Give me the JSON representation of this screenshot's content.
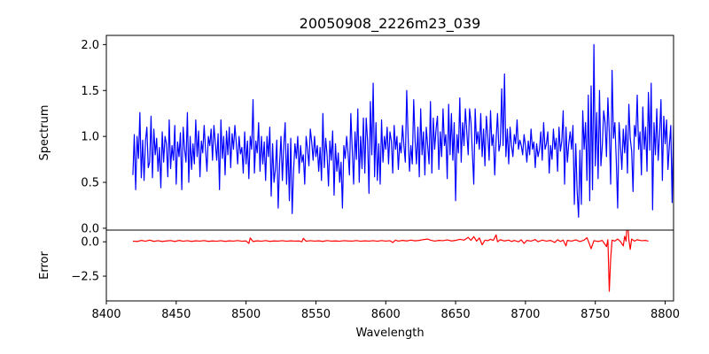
{
  "chart_data": [
    {
      "type": "line",
      "title": "20050908_2226m23_039",
      "xlabel": "",
      "ylabel": "Spectrum",
      "xlim": [
        8400,
        8806
      ],
      "ylim": [
        -0.02,
        2.1
      ],
      "yticks": [
        "0.0",
        "0.5",
        "1.0",
        "1.5",
        "2.0"
      ],
      "yticks_values": [
        0.0,
        0.5,
        1.0,
        1.5,
        2.0
      ],
      "series": [
        {
          "color": "#0000ff",
          "x_start": 8419,
          "x_step": 1,
          "values": [
            0.58,
            1.02,
            0.42,
            1.0,
            0.76,
            1.26,
            0.55,
            0.96,
            0.52,
            0.95,
            1.1,
            0.66,
            0.72,
            1.22,
            0.55,
            1.08,
            0.8,
            0.98,
            0.62,
            0.88,
            0.44,
            1.05,
            0.72,
            1.0,
            0.92,
            0.56,
            1.18,
            0.65,
            0.9,
            0.74,
            1.12,
            0.48,
            0.94,
            0.78,
            1.04,
            0.42,
            1.1,
            0.86,
            0.72,
            1.26,
            0.5,
            1.0,
            0.64,
            0.92,
            0.7,
            1.18,
            0.78,
            1.06,
            0.56,
            0.95,
            0.82,
            1.12,
            0.86,
            0.62,
            1.0,
            0.9,
            1.08,
            0.74,
            1.12,
            0.93,
            0.74,
            1.03,
            0.42,
            1.18,
            0.76,
            1.0,
            0.58,
            1.06,
            0.8,
            1.1,
            0.66,
            1.03,
            0.86,
            1.12,
            0.93,
            0.7,
            1.0,
            0.81,
            0.88,
            0.6,
            1.05,
            0.7,
            0.95,
            0.54,
            1.0,
            0.86,
            1.4,
            0.6,
            0.95,
            0.82,
            1.15,
            0.62,
            1.0,
            0.7,
            0.94,
            0.52,
            1.0,
            0.78,
            1.1,
            0.35,
            0.92,
            0.5,
            0.64,
            0.96,
            0.22,
            0.7,
            1.0,
            0.52,
            0.9,
            1.15,
            0.48,
            0.92,
            0.3,
            0.98,
            0.16,
            0.62,
            0.92,
            0.76,
            1.0,
            0.6,
            0.9,
            0.72,
            0.8,
            0.48,
            1.0,
            0.86,
            0.68,
            1.08,
            0.94,
            0.74,
            1.0,
            0.78,
            0.9,
            0.62,
            0.88,
            0.52,
            1.25,
            0.66,
            0.98,
            0.8,
            0.46,
            0.95,
            0.74,
            1.06,
            0.36,
            0.92,
            0.62,
            0.82,
            0.5,
            0.72,
            0.22,
            0.9,
            0.76,
            1.0,
            0.82,
            0.58,
            1.25,
            0.86,
            0.48,
            1.05,
            0.75,
            1.3,
            0.5,
            1.0,
            0.65,
            1.2,
            0.6,
            1.2,
            0.95,
            0.38,
            1.38,
            0.8,
            1.58,
            0.56,
            1.15,
            0.52,
            0.92,
            0.48,
            1.18,
            0.72,
            1.0,
            0.86,
            1.1,
            0.7,
            1.05,
            0.95,
            0.6,
            1.12,
            0.86,
            1.0,
            0.64,
            0.93,
            0.82,
            1.12,
            0.9,
            0.72,
            1.5,
            1.0,
            0.62,
            0.9,
            0.7,
            1.4,
            0.95,
            0.7,
            1.1,
            0.56,
            1.3,
            0.8,
            1.05,
            0.58,
            1.1,
            0.9,
            0.7,
            1.38,
            0.6,
            1.2,
            0.86,
            1.08,
            1.22,
            0.64,
            1.05,
            0.78,
            1.3,
            0.9,
            1.02,
            0.54,
            1.35,
            0.8,
            1.25,
            0.74,
            1.15,
            0.3,
            1.02,
            0.82,
            1.42,
            0.72,
            1.15,
            0.9,
            1.3,
            1.05,
            0.8,
            1.3,
            1.15,
            0.82,
            0.48,
            1.3,
            0.92,
            1.05,
            0.86,
            1.25,
            0.78,
            1.08,
            0.68,
            1.22,
            1.02,
            0.74,
            1.28,
            0.9,
            1.02,
            0.58,
            0.97,
            1.25,
            0.84,
            0.92,
            1.52,
            0.9,
            1.68,
            0.78,
            1.08,
            0.7,
            1.1,
            0.9,
            0.78,
            1.02,
            0.92,
            1.18,
            0.86,
            0.96,
            0.9,
            0.8,
            1.02,
            0.9,
            0.72,
            0.95,
            0.8,
            1.08,
            0.86,
            0.94,
            0.66,
            0.92,
            0.78,
            0.86,
            1.05,
            0.74,
            1.15,
            0.86,
            0.92,
            1.05,
            0.6,
            0.9,
            0.75,
            1.08,
            0.86,
            0.98,
            0.62,
            1.1,
            0.84,
            0.95,
            1.28,
            0.48,
            1.1,
            0.72,
            0.92,
            1.05,
            0.86,
            1.12,
            0.26,
            0.92,
            0.4,
            0.12,
            0.85,
            0.26,
            1.28,
            0.86,
            1.15,
            0.52,
            1.45,
            0.3,
            1.55,
            0.42,
            2.0,
            0.68,
            1.26,
            0.54,
            1.5,
            0.68,
            0.9,
            1.28,
            1.15,
            0.78,
            1.42,
            1.04,
            0.48,
            1.72,
            0.98,
            1.15,
            0.74,
            0.22,
            1.15,
            0.9,
            0.64,
            1.08,
            0.82,
            1.12,
            0.6,
            1.35,
            0.98,
            0.84,
            0.4,
            1.12,
            1.0,
            1.45,
            0.86,
            1.05,
            0.58,
            1.32,
            0.86,
            1.1,
            0.62,
            1.48,
            0.85,
            1.58,
            0.2,
            1.15,
            0.8,
            1.3,
            0.74,
            1.02,
            1.4,
            0.52,
            1.22,
            0.92,
            1.18,
            0.64,
            0.9,
            1.12,
            0.28,
            1.12,
            0.7,
            0.94,
            1.05,
            0.84,
            1.02,
            0.6,
            1.15,
            0.86,
            1.08,
            0.68,
            1.0,
            0.2,
            1.1,
            0.78,
            0.98,
            0.6,
            1.05,
            0.9,
            0.68,
            1.2,
            0.42,
            1.05,
            0.62,
            1.28,
            0.78,
            1.12,
            0.92,
            0.38,
            1.0,
            0.72,
            1.12,
            0.84,
            1.0,
            0.18,
            0.98,
            0.6,
            1.08,
            0.86,
            1.15,
            0.44,
            0.92,
            1.22,
            0.35,
            0.85,
            1.3,
            0.42,
            0.98,
            1.18,
            0.7,
            1.0,
            0.3,
            0.56,
            0.92,
            0.1,
            0.68,
            1.75,
            0.82,
            0.68,
            0.52,
            1.02,
            0.1,
            1.52,
            0.6,
            1.12,
            0.4,
            0.9,
            0.74,
            1.15,
            0.86,
            0.95,
            0.9
          ]
        }
      ]
    },
    {
      "type": "line",
      "title": "",
      "xlabel": "Wavelength",
      "ylabel": "Error",
      "xlim": [
        8400,
        8806
      ],
      "ylim": [
        -4.3,
        0.85
      ],
      "xticks": [
        "8400",
        "8450",
        "8500",
        "8550",
        "8600",
        "8650",
        "8700",
        "8750",
        "8800"
      ],
      "xticks_values": [
        8400,
        8450,
        8500,
        8550,
        8600,
        8650,
        8700,
        8750,
        8800
      ],
      "yticks": [
        "0.0",
        "−2.5"
      ],
      "yticks_values": [
        0.0,
        -2.5
      ],
      "series": [
        {
          "color": "#ff0000",
          "points": [
            [
              8419,
              0.05
            ],
            [
              8422,
              0.02
            ],
            [
              8425,
              0.1
            ],
            [
              8428,
              0.04
            ],
            [
              8431,
              0.12
            ],
            [
              8434,
              0.03
            ],
            [
              8437,
              0.08
            ],
            [
              8440,
              0.02
            ],
            [
              8443,
              0.06
            ],
            [
              8446,
              0.09
            ],
            [
              8449,
              0.02
            ],
            [
              8452,
              0.1
            ],
            [
              8455,
              0.04
            ],
            [
              8458,
              0.08
            ],
            [
              8461,
              0.03
            ],
            [
              8464,
              0.07
            ],
            [
              8467,
              0.05
            ],
            [
              8470,
              0.09
            ],
            [
              8473,
              0.03
            ],
            [
              8476,
              0.06
            ],
            [
              8479,
              0.04
            ],
            [
              8482,
              0.08
            ],
            [
              8485,
              0.03
            ],
            [
              8488,
              0.07
            ],
            [
              8491,
              0.05
            ],
            [
              8494,
              0.09
            ],
            [
              8497,
              0.04
            ],
            [
              8500,
              0.06
            ],
            [
              8502,
              -0.12
            ],
            [
              8503,
              0.28
            ],
            [
              8505,
              0.02
            ],
            [
              8508,
              0.07
            ],
            [
              8511,
              0.04
            ],
            [
              8514,
              0.09
            ],
            [
              8517,
              0.03
            ],
            [
              8520,
              0.06
            ],
            [
              8523,
              0.05
            ],
            [
              8526,
              0.08
            ],
            [
              8529,
              0.04
            ],
            [
              8532,
              0.07
            ],
            [
              8535,
              0.05
            ],
            [
              8538,
              0.06
            ],
            [
              8540,
              0.0
            ],
            [
              8541,
              0.25
            ],
            [
              8543,
              0.04
            ],
            [
              8546,
              0.08
            ],
            [
              8549,
              0.05
            ],
            [
              8552,
              0.07
            ],
            [
              8555,
              0.03
            ],
            [
              8558,
              0.09
            ],
            [
              8561,
              0.05
            ],
            [
              8564,
              0.06
            ],
            [
              8567,
              0.04
            ],
            [
              8570,
              0.08
            ],
            [
              8573,
              0.06
            ],
            [
              8576,
              0.05
            ],
            [
              8579,
              0.09
            ],
            [
              8582,
              0.04
            ],
            [
              8585,
              0.07
            ],
            [
              8588,
              0.05
            ],
            [
              8591,
              0.08
            ],
            [
              8594,
              0.04
            ],
            [
              8597,
              0.09
            ],
            [
              8600,
              0.05
            ],
            [
              8603,
              0.08
            ],
            [
              8605,
              -0.05
            ],
            [
              8607,
              0.12
            ],
            [
              8609,
              0.05
            ],
            [
              8612,
              0.1
            ],
            [
              8615,
              0.06
            ],
            [
              8618,
              0.12
            ],
            [
              8621,
              0.07
            ],
            [
              8624,
              0.1
            ],
            [
              8627,
              0.16
            ],
            [
              8630,
              0.2
            ],
            [
              8632,
              0.12
            ],
            [
              8635,
              0.05
            ],
            [
              8638,
              0.1
            ],
            [
              8641,
              0.08
            ],
            [
              8644,
              0.14
            ],
            [
              8647,
              0.06
            ],
            [
              8650,
              0.1
            ],
            [
              8653,
              0.18
            ],
            [
              8656,
              0.12
            ],
            [
              8659,
              0.32
            ],
            [
              8661,
              0.1
            ],
            [
              8663,
              0.38
            ],
            [
              8665,
              0.05
            ],
            [
              8667,
              0.28
            ],
            [
              8669,
              -0.22
            ],
            [
              8671,
              0.12
            ],
            [
              8673,
              0.08
            ],
            [
              8675,
              0.18
            ],
            [
              8677,
              0.1
            ],
            [
              8679,
              0.5
            ],
            [
              8680,
              0.0
            ],
            [
              8682,
              0.15
            ],
            [
              8685,
              0.06
            ],
            [
              8688,
              0.12
            ],
            [
              8690,
              0.02
            ],
            [
              8692,
              0.1
            ],
            [
              8695,
              0.0
            ],
            [
              8697,
              0.14
            ],
            [
              8699,
              -0.12
            ],
            [
              8701,
              0.1
            ],
            [
              8704,
              0.05
            ],
            [
              8707,
              0.16
            ],
            [
              8709,
              0.0
            ],
            [
              8712,
              0.12
            ],
            [
              8715,
              0.05
            ],
            [
              8718,
              0.1
            ],
            [
              8721,
              -0.05
            ],
            [
              8723,
              0.15
            ],
            [
              8725,
              0.02
            ],
            [
              8727,
              0.12
            ],
            [
              8729,
              -0.3
            ],
            [
              8730,
              0.1
            ],
            [
              8733,
              0.05
            ],
            [
              8736,
              0.14
            ],
            [
              8739,
              0.02
            ],
            [
              8742,
              0.12
            ],
            [
              8744,
              0.3
            ],
            [
              8745,
              0.05
            ],
            [
              8747,
              -0.5
            ],
            [
              8749,
              0.08
            ],
            [
              8752,
              0.02
            ],
            [
              8755,
              0.1
            ],
            [
              8758,
              -0.35
            ],
            [
              8759,
              0.15
            ],
            [
              8760,
              -3.6
            ],
            [
              8761,
              -1.2
            ],
            [
              8762,
              0.12
            ],
            [
              8764,
              0.05
            ],
            [
              8766,
              0.2
            ],
            [
              8768,
              0.02
            ],
            [
              8770,
              -0.3
            ],
            [
              8771,
              0.4
            ],
            [
              8772,
              0.05
            ],
            [
              8773,
              1.7
            ],
            [
              8774,
              0.15
            ],
            [
              8775,
              -0.55
            ],
            [
              8776,
              0.2
            ],
            [
              8778,
              0.05
            ],
            [
              8780,
              0.15
            ],
            [
              8783,
              0.08
            ],
            [
              8786,
              0.1
            ],
            [
              8788,
              0.05
            ]
          ]
        }
      ]
    }
  ]
}
